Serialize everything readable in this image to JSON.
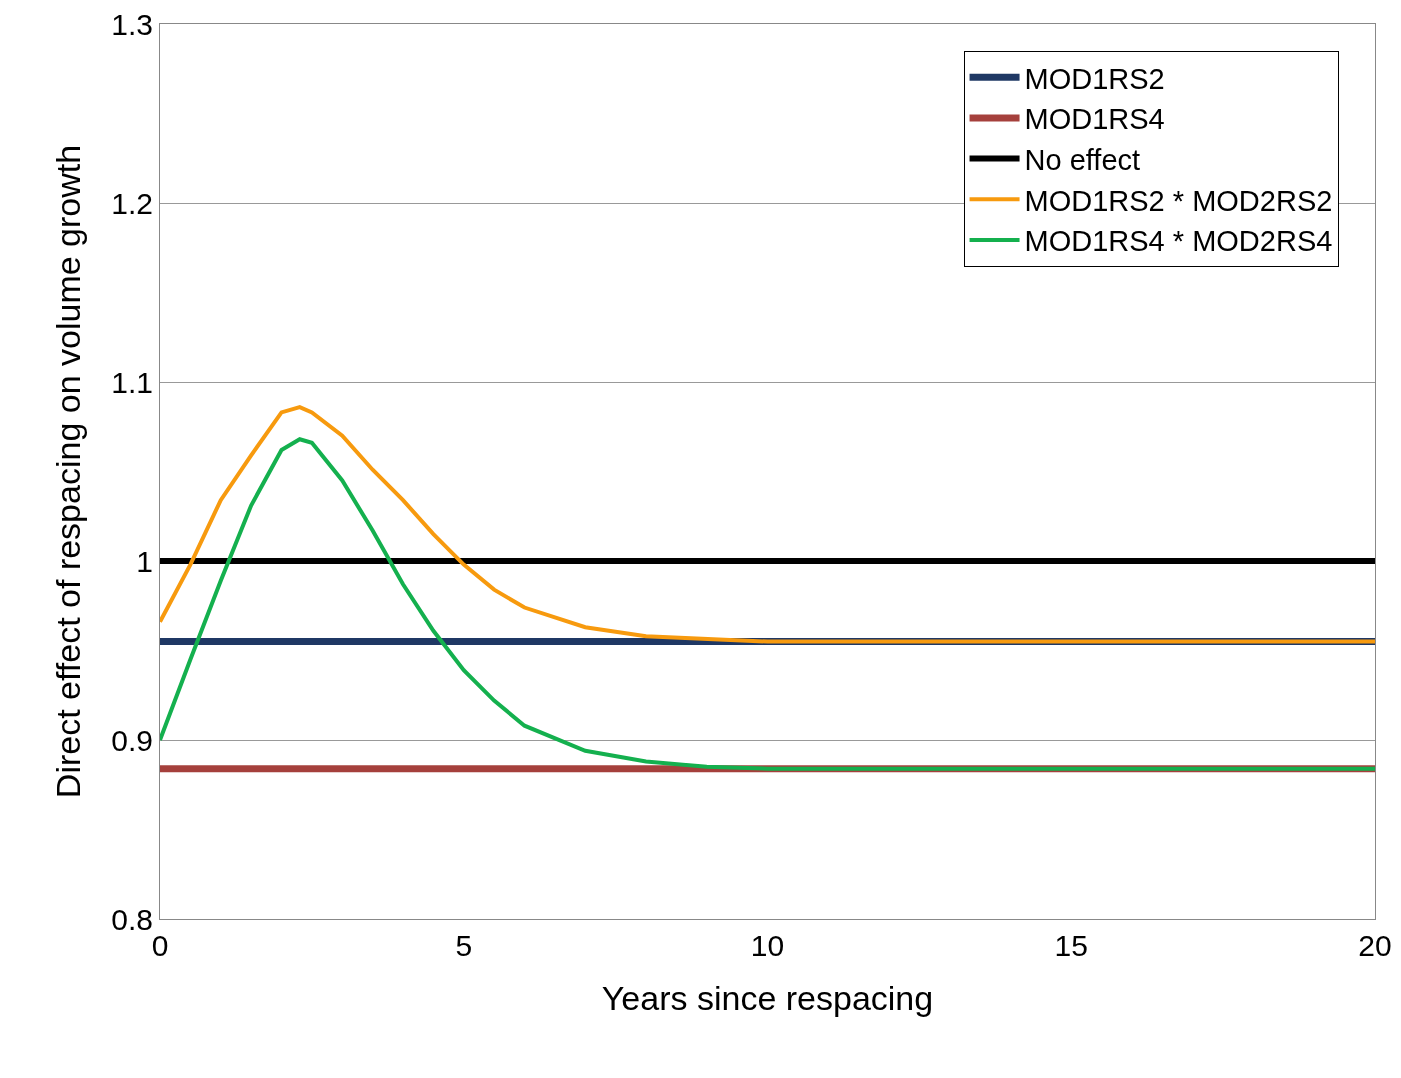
{
  "chart_data": {
    "type": "line",
    "xlabel": "Years since respacing",
    "ylabel": "Direct effect of respacing on volume growth",
    "xlim": [
      0,
      20
    ],
    "xticks": [
      0,
      5,
      10,
      15,
      20
    ],
    "ylim": [
      0.8,
      1.3
    ],
    "yticks": [
      0.8,
      0.9,
      1,
      1.1,
      1.2,
      1.3
    ],
    "grid": "y",
    "legend": "top right",
    "marker": "none",
    "line_style": "solid",
    "series": [
      {
        "name": "MOD1RS2",
        "color": "#1f3864",
        "x": [
          0,
          20
        ],
        "values": [
          0.955,
          0.955
        ]
      },
      {
        "name": "MOD1RS4",
        "color": "#a5403c",
        "x": [
          0,
          20
        ],
        "values": [
          0.884,
          0.884
        ]
      },
      {
        "name": "No effect",
        "color": "#000000",
        "x": [
          0,
          20
        ],
        "values": [
          1,
          1
        ]
      },
      {
        "name": "MOD1RS2 * MOD2RS2",
        "color": "#f79a0e",
        "x": [
          0,
          0.5,
          1,
          1.5,
          2,
          2.3,
          2.5,
          3,
          3.5,
          4,
          4.5,
          5,
          5.5,
          6,
          7,
          8,
          10,
          20
        ],
        "values": [
          0.966,
          0.998,
          1.034,
          1.059,
          1.083,
          1.086,
          1.083,
          1.07,
          1.051,
          1.034,
          1.015,
          0.998,
          0.984,
          0.974,
          0.963,
          0.958,
          0.955,
          0.955
        ]
      },
      {
        "name": "MOD1RS4 * MOD2RS4",
        "color": "#14b04e",
        "x": [
          0,
          0.5,
          1,
          1.5,
          2,
          2.3,
          2.5,
          3,
          3.5,
          4,
          4.5,
          5,
          5.5,
          6,
          7,
          8,
          9,
          10,
          20
        ],
        "values": [
          0.9,
          0.945,
          0.989,
          1.031,
          1.062,
          1.068,
          1.066,
          1.045,
          1.017,
          0.987,
          0.961,
          0.939,
          0.922,
          0.908,
          0.894,
          0.888,
          0.885,
          0.884,
          0.884
        ]
      }
    ]
  }
}
